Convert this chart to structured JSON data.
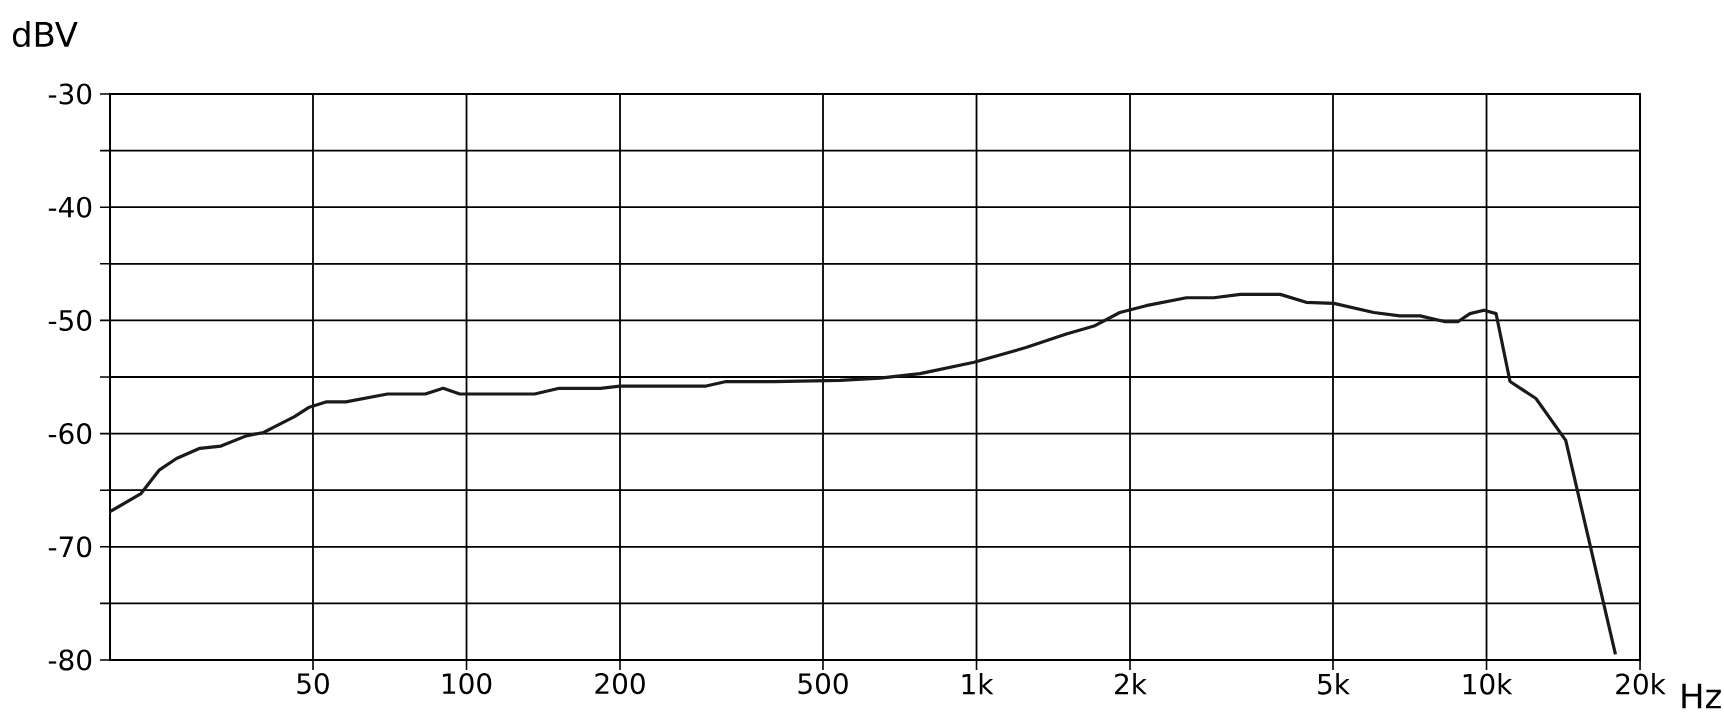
{
  "chart_data": {
    "type": "line",
    "xlabel": "Hz",
    "ylabel": "dBV",
    "log": "x",
    "xlim": [
      20,
      20000
    ],
    "ylim": [
      -80,
      -30
    ],
    "xticks": [
      50,
      100,
      200,
      500,
      {
        "value": 1000,
        "label": "1k"
      },
      {
        "value": 2000,
        "label": "2k"
      },
      {
        "value": 5000,
        "label": "5k"
      },
      {
        "value": 10000,
        "label": "10k"
      },
      {
        "value": 20000,
        "label": "20k"
      }
    ],
    "yticks": [
      -80,
      {
        "value": -75,
        "label": null
      },
      -70,
      {
        "value": -65,
        "label": null
      },
      -60,
      {
        "value": -55,
        "label": null
      },
      -50,
      {
        "value": -45,
        "label": null
      },
      -40,
      {
        "value": -35,
        "label": null
      },
      -30
    ],
    "grid": true,
    "marker": "none",
    "line_style": "solid",
    "series": [
      {
        "color": "#1a1a1a",
        "x": [
          20,
          23,
          25,
          27,
          30,
          33,
          37,
          40,
          42,
          46,
          49,
          53,
          58,
          70,
          83,
          90,
          97,
          136,
          152,
          183,
          200,
          295,
          323,
          401,
          540,
          647,
          775,
          989,
          1250,
          1500,
          1700,
          1910,
          2150,
          2580,
          2920,
          3290,
          3940,
          4430,
          5020,
          6010,
          6760,
          7410,
          8260,
          8800,
          9280,
          9890,
          10440,
          11120,
          12500,
          14300,
          17900
        ],
        "values": [
          -66.9,
          -65.3,
          -63.2,
          -62.2,
          -61.3,
          -61.1,
          -60.2,
          -59.9,
          -59.4,
          -58.5,
          -57.7,
          -57.2,
          -57.2,
          -56.5,
          -56.5,
          -56.0,
          -56.5,
          -56.5,
          -56.0,
          -56.0,
          -55.8,
          -55.8,
          -55.4,
          -55.4,
          -55.3,
          -55.1,
          -54.7,
          -53.7,
          -52.4,
          -51.2,
          -50.5,
          -49.3,
          -48.7,
          -48.0,
          -48.0,
          -47.7,
          -47.7,
          -48.4,
          -48.5,
          -49.3,
          -49.6,
          -49.6,
          -50.1,
          -50.1,
          -49.4,
          -49.1,
          -49.4,
          -55.4,
          -56.9,
          -60.6,
          -79.5
        ]
      }
    ]
  }
}
